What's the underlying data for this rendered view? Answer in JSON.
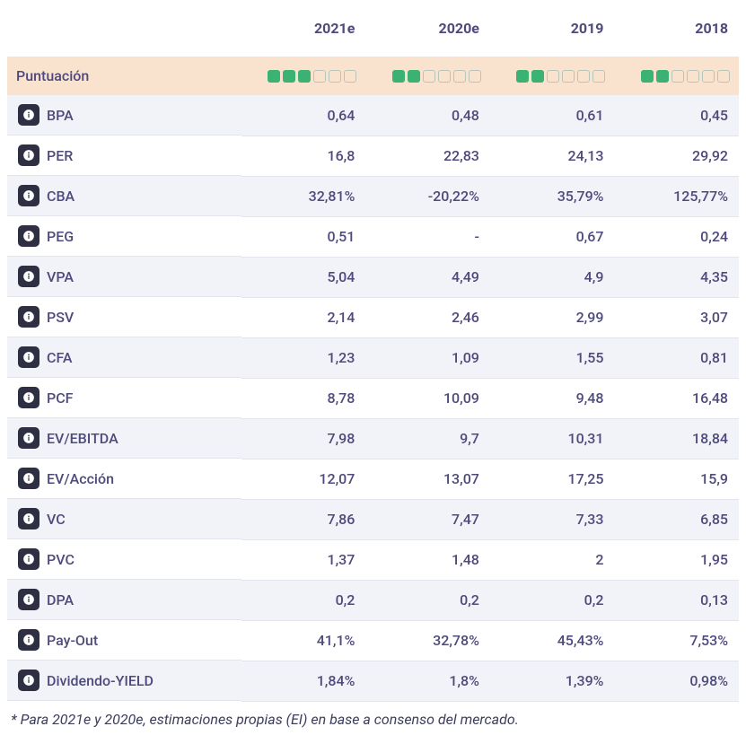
{
  "columns": [
    "2021e",
    "2020e",
    "2019",
    "2018"
  ],
  "score_label": "Puntuación",
  "ratings": [
    3,
    2,
    2,
    2
  ],
  "rating_max": 6,
  "rows": [
    {
      "label": "BPA",
      "values": [
        "0,64",
        "0,48",
        "0,61",
        "0,45"
      ]
    },
    {
      "label": "PER",
      "values": [
        "16,8",
        "22,83",
        "24,13",
        "29,92"
      ]
    },
    {
      "label": "CBA",
      "values": [
        "32,81%",
        "-20,22%",
        "35,79%",
        "125,77%"
      ]
    },
    {
      "label": "PEG",
      "values": [
        "0,51",
        "-",
        "0,67",
        "0,24"
      ]
    },
    {
      "label": "VPA",
      "values": [
        "5,04",
        "4,49",
        "4,9",
        "4,35"
      ]
    },
    {
      "label": "PSV",
      "values": [
        "2,14",
        "2,46",
        "2,99",
        "3,07"
      ]
    },
    {
      "label": "CFA",
      "values": [
        "1,23",
        "1,09",
        "1,55",
        "0,81"
      ]
    },
    {
      "label": "PCF",
      "values": [
        "8,78",
        "10,09",
        "9,48",
        "16,48"
      ]
    },
    {
      "label": "EV/EBITDA",
      "values": [
        "7,98",
        "9,7",
        "10,31",
        "18,84"
      ]
    },
    {
      "label": "EV/Acción",
      "values": [
        "12,07",
        "13,07",
        "17,25",
        "15,9"
      ]
    },
    {
      "label": "VC",
      "values": [
        "7,86",
        "7,47",
        "7,33",
        "6,85"
      ]
    },
    {
      "label": "PVC",
      "values": [
        "1,37",
        "1,48",
        "2",
        "1,95"
      ]
    },
    {
      "label": "DPA",
      "values": [
        "0,2",
        "0,2",
        "0,2",
        "0,13"
      ]
    },
    {
      "label": "Pay-Out",
      "values": [
        "41,1%",
        "32,78%",
        "45,43%",
        "7,53%"
      ]
    },
    {
      "label": "Dividendo-YIELD",
      "values": [
        "1,84%",
        "1,8%",
        "1,39%",
        "0,98%"
      ]
    }
  ],
  "footnote": "* Para 2021e y 2020e, estimaciones propias (EI) en base a consenso del mercado.",
  "colors": {
    "score_row_bg": "#f9e3ce",
    "rating_on": "#3bb273",
    "info_badge_bg": "#2f2f44",
    "text": "#4e4a7c",
    "stripe": "#f2f3f8",
    "border": "#e4e4ec"
  }
}
